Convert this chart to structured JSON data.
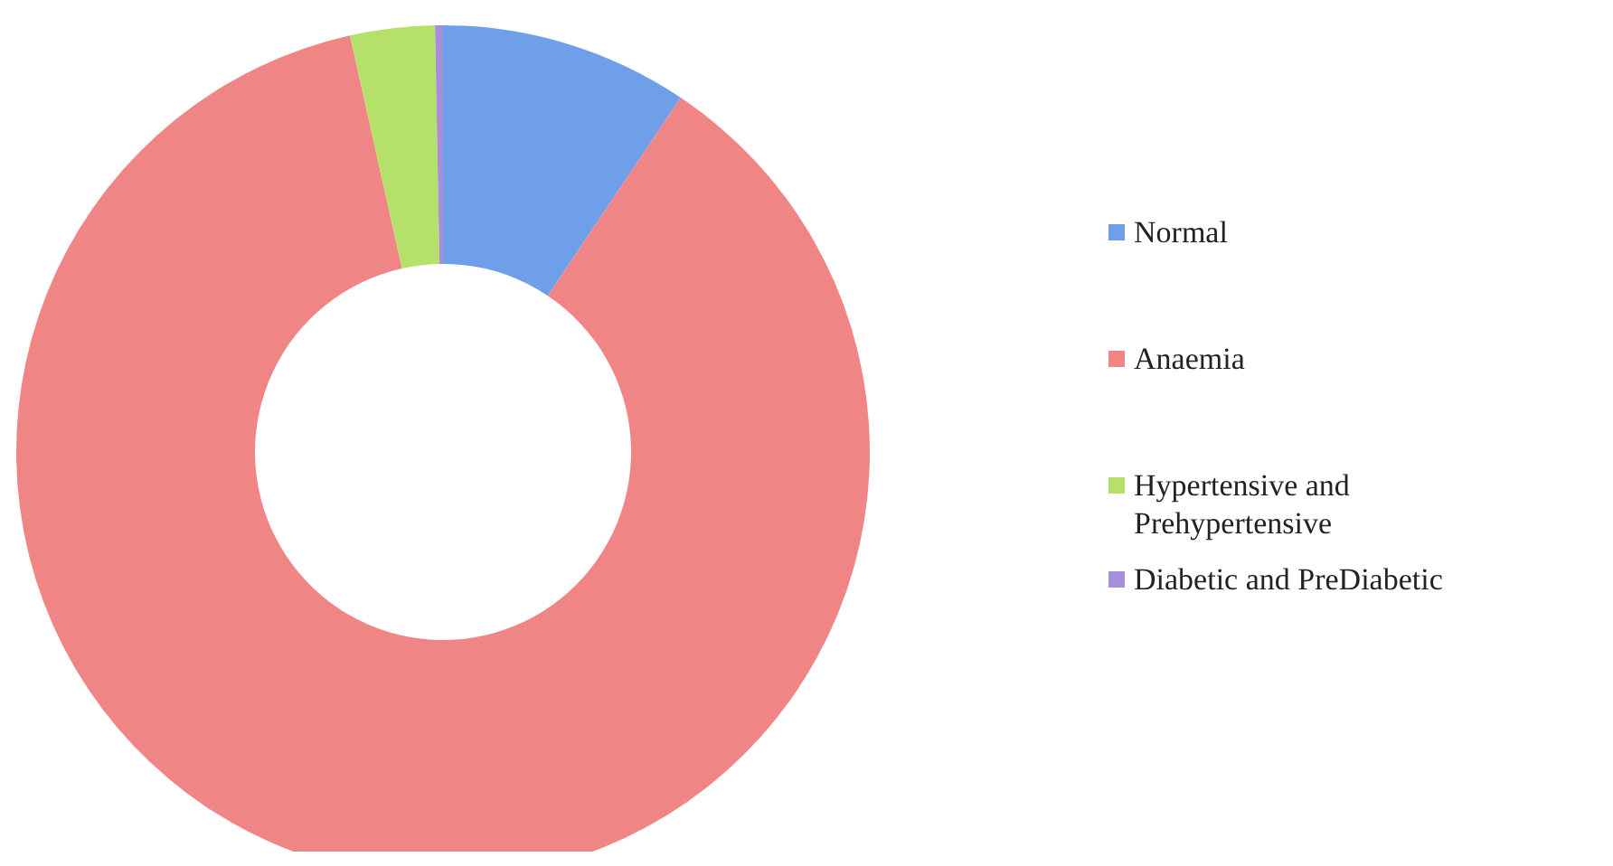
{
  "chart_data": {
    "type": "donut",
    "categories": [
      "Normal",
      "Anaemia",
      "Hypertensive and Prehypertensive",
      "Diabetic and PreDiabetic"
    ],
    "values": [
      9.4,
      87.1,
      3.2,
      0.3
    ],
    "colors": [
      "#6f9fe8",
      "#f08585",
      "#b5e06a",
      "#a58fd8"
    ],
    "legend": "right"
  }
}
